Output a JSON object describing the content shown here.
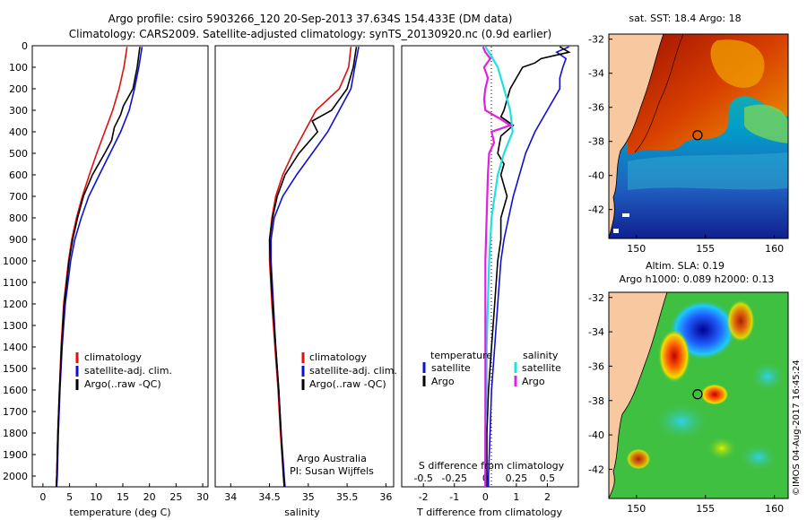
{
  "header": {
    "line1": "Argo profile: csiro 5903266_120 20-Sep-2013 37.634S 154.433E (DM data)",
    "line2": "Climatology: CARS2009. Satellite-adjusted climatology: synTS_20130920.nc (0.9d earlier)"
  },
  "colors": {
    "climatology": "#e01010",
    "satellite": "#1010d0",
    "argo": "#000000",
    "salinity_satellite": "#20e0e0",
    "salinity_argo": "#e020e0",
    "land": "#f8c8a0"
  },
  "chart_data": [
    {
      "type": "line",
      "name": "temperature-profile",
      "xlabel": "temperature (deg C)",
      "xlim": [
        -2,
        31
      ],
      "ylim": [
        0,
        2050
      ],
      "xticks": [
        "0",
        "5",
        "10",
        "15",
        "20",
        "25",
        "30"
      ],
      "yticks": [
        "0",
        "100",
        "200",
        "300",
        "400",
        "500",
        "600",
        "700",
        "800",
        "900",
        "1000",
        "1100",
        "1200",
        "1300",
        "1400",
        "1500",
        "1600",
        "1700",
        "1800",
        "1900",
        "2000"
      ],
      "legend": [
        "climatology",
        "satellite-adj. clim.",
        "Argo(..raw -QC)"
      ],
      "series": [
        {
          "name": "climatology",
          "depth": [
            5,
            100,
            200,
            300,
            400,
            500,
            600,
            700,
            800,
            900,
            1000,
            1200,
            1400,
            1600,
            1800,
            2000,
            2050
          ],
          "values": [
            15.8,
            15.2,
            14.3,
            13.1,
            11.6,
            10.1,
            8.7,
            7.4,
            6.3,
            5.4,
            4.8,
            3.9,
            3.4,
            3.1,
            2.8,
            2.6,
            2.5
          ]
        },
        {
          "name": "satellite",
          "depth": [
            5,
            100,
            200,
            300,
            400,
            500,
            600,
            700,
            800,
            900,
            1000,
            1200,
            1400,
            1600,
            1800,
            2000,
            2050
          ],
          "values": [
            18.6,
            18.0,
            17.2,
            16.2,
            14.6,
            12.6,
            10.6,
            8.6,
            7.2,
            6.0,
            5.2,
            4.2,
            3.6,
            3.2,
            2.9,
            2.7,
            2.6
          ]
        },
        {
          "name": "Argo",
          "depth": [
            5,
            100,
            200,
            280,
            320,
            380,
            440,
            500,
            600,
            700,
            800,
            900,
            1000,
            1200,
            1400,
            1600,
            1800,
            2000,
            2050
          ],
          "values": [
            18.2,
            17.7,
            16.9,
            15.1,
            14.6,
            13.4,
            12.9,
            11.6,
            9.3,
            7.6,
            6.5,
            5.6,
            4.9,
            4.0,
            3.5,
            3.1,
            2.8,
            2.6,
            2.5
          ]
        }
      ]
    },
    {
      "type": "line",
      "name": "salinity-profile",
      "xlabel": "salinity",
      "xlim": [
        33.8,
        36.1
      ],
      "ylim": [
        0,
        2050
      ],
      "xticks": [
        "34",
        "34.5",
        "35",
        "35.5",
        "36"
      ],
      "legend": [
        "climatology",
        "satellite-adj. clim.",
        "Argo(..raw -QC)"
      ],
      "annotation": [
        "Argo Australia",
        "PI: Susan Wijffels"
      ],
      "series": [
        {
          "name": "climatology",
          "depth": [
            5,
            100,
            200,
            300,
            400,
            500,
            600,
            700,
            800,
            900,
            1000,
            1200,
            1400,
            1600,
            1800,
            2000,
            2050
          ],
          "values": [
            35.55,
            35.52,
            35.4,
            35.1,
            34.95,
            34.8,
            34.67,
            34.58,
            34.53,
            34.5,
            34.5,
            34.53,
            34.57,
            34.61,
            34.64,
            34.68,
            34.69
          ]
        },
        {
          "name": "satellite",
          "depth": [
            5,
            100,
            200,
            300,
            400,
            500,
            600,
            700,
            800,
            900,
            1000,
            1200,
            1400,
            1600,
            1800,
            2000,
            2050
          ],
          "values": [
            35.65,
            35.6,
            35.55,
            35.4,
            35.25,
            35.05,
            34.85,
            34.67,
            34.56,
            34.52,
            34.52,
            34.55,
            34.58,
            34.62,
            34.65,
            34.69,
            34.7
          ]
        },
        {
          "name": "Argo",
          "depth": [
            5,
            100,
            200,
            300,
            350,
            400,
            500,
            600,
            700,
            800,
            900,
            1000,
            1200,
            1400,
            1600,
            1800,
            2000,
            2050
          ],
          "values": [
            35.62,
            35.58,
            35.5,
            35.3,
            35.05,
            35.12,
            34.88,
            34.7,
            34.6,
            34.54,
            34.5,
            34.51,
            34.54,
            34.58,
            34.62,
            34.65,
            34.68,
            34.69
          ]
        }
      ]
    },
    {
      "type": "line",
      "name": "difference-profile",
      "xlabel": "T difference from climatology",
      "xlabel2": "S difference from climatology",
      "xlim": [
        -2.7,
        3.0
      ],
      "ylim": [
        0,
        2050
      ],
      "xticks": [
        "-2",
        "-1",
        "0",
        "1",
        "2"
      ],
      "xticks2": [
        "-0.5",
        "-0.25",
        "0",
        "0.25",
        "0.5"
      ],
      "legend_temperature": [
        "temperature",
        "satellite",
        "Argo"
      ],
      "legend_salinity": [
        "salinity",
        "satellite",
        "Argo"
      ],
      "series": [
        {
          "name": "temperature satellite",
          "depth": [
            5,
            30,
            60,
            100,
            150,
            200,
            300,
            400,
            500,
            600,
            700,
            800,
            900,
            1000,
            1200,
            1400,
            1600,
            1800,
            2000,
            2050
          ],
          "values": [
            2.7,
            2.3,
            2.6,
            2.5,
            2.4,
            2.4,
            2.0,
            1.6,
            1.3,
            1.1,
            0.9,
            0.75,
            0.6,
            0.5,
            0.4,
            0.3,
            0.2,
            0.15,
            0.1,
            0.1
          ]
        },
        {
          "name": "temperature Argo",
          "depth": [
            5,
            30,
            60,
            80,
            100,
            150,
            200,
            250,
            300,
            330,
            370,
            420,
            500,
            550,
            600,
            700,
            800,
            900,
            1000,
            1200,
            1400,
            1600,
            1800,
            2000,
            2050
          ],
          "values": [
            2.4,
            2.7,
            1.8,
            1.6,
            1.2,
            1.0,
            0.8,
            0.7,
            0.6,
            0.5,
            0.9,
            0.5,
            0.4,
            0.6,
            0.5,
            0.7,
            0.5,
            0.5,
            0.4,
            0.3,
            0.2,
            0.1,
            0.05,
            0.05,
            0.05
          ]
        },
        {
          "name": "salinity satellite",
          "depth": [
            5,
            50,
            100,
            200,
            300,
            400,
            500,
            600,
            800,
            1000,
            1200,
            1400,
            1600,
            1800,
            2000,
            2050
          ],
          "values": [
            0.0,
            0.05,
            0.1,
            0.15,
            0.2,
            0.22,
            0.15,
            0.1,
            0.05,
            0.03,
            0.02,
            0.01,
            0.01,
            0.0,
            0.0,
            0.0
          ]
        },
        {
          "name": "salinity Argo",
          "depth": [
            5,
            30,
            60,
            100,
            150,
            200,
            250,
            300,
            340,
            370,
            400,
            450,
            500,
            600,
            800,
            1000,
            1200,
            1400,
            1600,
            1800,
            2000,
            2050
          ],
          "values": [
            -0.02,
            0.0,
            0.04,
            -0.01,
            0.02,
            0.0,
            -0.01,
            0.0,
            0.12,
            0.2,
            0.05,
            0.07,
            0.03,
            0.02,
            0.01,
            0.0,
            0.0,
            0.0,
            0.0,
            0.0,
            0.0,
            0.0
          ]
        }
      ]
    },
    {
      "type": "heatmap",
      "name": "sst-map",
      "title": "sat. SST: 18.4 Argo: 18",
      "xticks": [
        "150",
        "155",
        "160"
      ],
      "yticks": [
        "-32",
        "-34",
        "-36",
        "-38",
        "-40",
        "-42"
      ],
      "xlim": [
        148,
        161
      ],
      "ylim": [
        -43.7,
        -31.7
      ],
      "argo_position": [
        154.433,
        -37.634
      ]
    },
    {
      "type": "heatmap",
      "name": "sla-map",
      "title": "Altim. SLA: 0.19",
      "subtitle": "Argo h1000: 0.089 h2000: 0.13",
      "xticks": [
        "150",
        "155",
        "160"
      ],
      "yticks": [
        "-32",
        "-34",
        "-36",
        "-38",
        "-40",
        "-42"
      ],
      "xlim": [
        148,
        161
      ],
      "ylim": [
        -43.7,
        -31.7
      ],
      "argo_position": [
        154.433,
        -37.634
      ]
    }
  ],
  "footer": {
    "stamp": "©IMOS 04-Aug-2017 16:45:24"
  }
}
